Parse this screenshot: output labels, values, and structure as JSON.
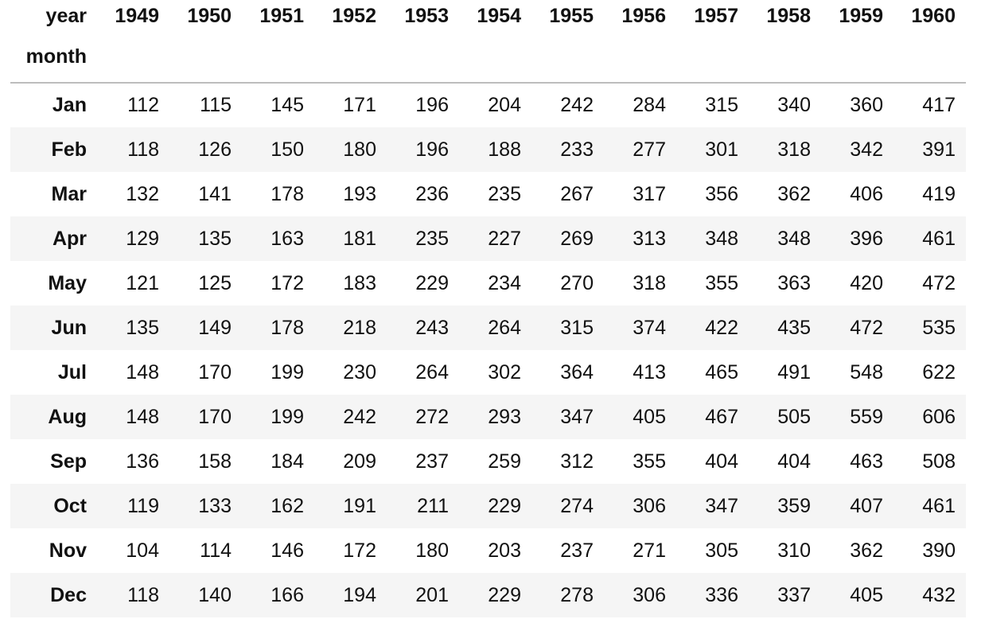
{
  "table": {
    "corner": "year",
    "index_name": "month",
    "columns": [
      1949,
      1950,
      1951,
      1952,
      1953,
      1954,
      1955,
      1956,
      1957,
      1958,
      1959,
      1960
    ],
    "rows": [
      {
        "label": "Jan",
        "values": [
          112,
          115,
          145,
          171,
          196,
          204,
          242,
          284,
          315,
          340,
          360,
          417
        ]
      },
      {
        "label": "Feb",
        "values": [
          118,
          126,
          150,
          180,
          196,
          188,
          233,
          277,
          301,
          318,
          342,
          391
        ]
      },
      {
        "label": "Mar",
        "values": [
          132,
          141,
          178,
          193,
          236,
          235,
          267,
          317,
          356,
          362,
          406,
          419
        ]
      },
      {
        "label": "Apr",
        "values": [
          129,
          135,
          163,
          181,
          235,
          227,
          269,
          313,
          348,
          348,
          396,
          461
        ]
      },
      {
        "label": "May",
        "values": [
          121,
          125,
          172,
          183,
          229,
          234,
          270,
          318,
          355,
          363,
          420,
          472
        ]
      },
      {
        "label": "Jun",
        "values": [
          135,
          149,
          178,
          218,
          243,
          264,
          315,
          374,
          422,
          435,
          472,
          535
        ]
      },
      {
        "label": "Jul",
        "values": [
          148,
          170,
          199,
          230,
          264,
          302,
          364,
          413,
          465,
          491,
          548,
          622
        ]
      },
      {
        "label": "Aug",
        "values": [
          148,
          170,
          199,
          242,
          272,
          293,
          347,
          405,
          467,
          505,
          559,
          606
        ]
      },
      {
        "label": "Sep",
        "values": [
          136,
          158,
          184,
          209,
          237,
          259,
          312,
          355,
          404,
          404,
          463,
          508
        ]
      },
      {
        "label": "Oct",
        "values": [
          119,
          133,
          162,
          191,
          211,
          229,
          274,
          306,
          347,
          359,
          407,
          461
        ]
      },
      {
        "label": "Nov",
        "values": [
          104,
          114,
          146,
          172,
          180,
          203,
          237,
          271,
          305,
          310,
          362,
          390
        ]
      },
      {
        "label": "Dec",
        "values": [
          118,
          140,
          166,
          194,
          201,
          229,
          278,
          306,
          336,
          337,
          405,
          432
        ]
      }
    ]
  }
}
